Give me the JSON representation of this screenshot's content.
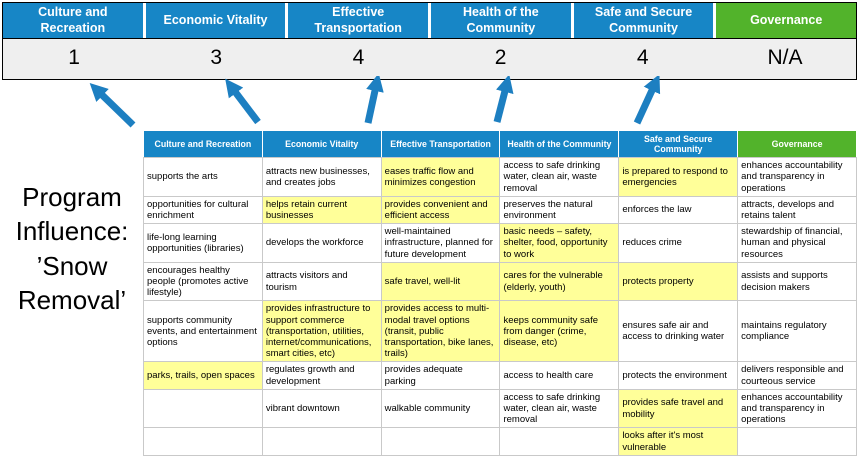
{
  "title": "Program Influence: ’Snow Removal’",
  "scoreboard": {
    "columns": [
      {
        "label": "Culture and Recreation",
        "score": "1",
        "color": "blue"
      },
      {
        "label": "Economic Vitality",
        "score": "3",
        "color": "blue"
      },
      {
        "label": "Effective Transportation",
        "score": "4",
        "color": "blue"
      },
      {
        "label": "Health of the Community",
        "score": "2",
        "color": "blue"
      },
      {
        "label": "Safe and Secure Community",
        "score": "4",
        "color": "blue"
      },
      {
        "label": "Governance",
        "score": "N/A",
        "color": "green"
      }
    ]
  },
  "table": {
    "headers": [
      {
        "label": "Culture and Recreation",
        "color": "blue"
      },
      {
        "label": "Economic Vitality",
        "color": "blue"
      },
      {
        "label": "Effective Transportation",
        "color": "blue"
      },
      {
        "label": "Health of the Community",
        "color": "blue"
      },
      {
        "label": "Safe and Secure Community",
        "color": "blue"
      },
      {
        "label": "Governance",
        "color": "green"
      }
    ],
    "rows": [
      [
        {
          "text": "supports the arts",
          "highlight": false
        },
        {
          "text": "attracts new businesses, and creates jobs",
          "highlight": false
        },
        {
          "text": "eases traffic flow and minimizes congestion",
          "highlight": true
        },
        {
          "text": "access to safe drinking water, clean air, waste removal",
          "highlight": false
        },
        {
          "text": "is prepared to respond to emergencies",
          "highlight": true
        },
        {
          "text": "enhances accountability and transparency in operations",
          "highlight": false
        }
      ],
      [
        {
          "text": "opportunities for cultural enrichment",
          "highlight": false
        },
        {
          "text": "helps retain current businesses",
          "highlight": true
        },
        {
          "text": "provides convenient and efficient access",
          "highlight": true
        },
        {
          "text": "preserves the natural environment",
          "highlight": false
        },
        {
          "text": "enforces the law",
          "highlight": false
        },
        {
          "text": "attracts, develops and retains talent",
          "highlight": false
        }
      ],
      [
        {
          "text": "life-long learning opportunities (libraries)",
          "highlight": false
        },
        {
          "text": "develops the workforce",
          "highlight": false
        },
        {
          "text": "well-maintained infrastructure, planned for future development",
          "highlight": false
        },
        {
          "text": "basic needs – safety, shelter, food, opportunity to work",
          "highlight": true
        },
        {
          "text": "reduces crime",
          "highlight": false
        },
        {
          "text": "stewardship of financial, human and physical resources",
          "highlight": false
        }
      ],
      [
        {
          "text": "encourages healthy people (promotes active lifestyle)",
          "highlight": false
        },
        {
          "text": "attracts visitors and tourism",
          "highlight": false
        },
        {
          "text": "safe travel, well-lit",
          "highlight": true
        },
        {
          "text": "cares for the vulnerable (elderly, youth)",
          "highlight": true
        },
        {
          "text": "protects property",
          "highlight": true
        },
        {
          "text": "assists and supports decision makers",
          "highlight": false
        }
      ],
      [
        {
          "text": "supports community events, and entertainment options",
          "highlight": false
        },
        {
          "text": "provides infrastructure to support commerce (transportation, utilities, internet/communications, smart cities, etc)",
          "highlight": true
        },
        {
          "text": "provides access to multi-modal travel options (transit, public transportation, bike lanes, trails)",
          "highlight": true
        },
        {
          "text": "keeps community safe from danger (crime, disease, etc)",
          "highlight": true
        },
        {
          "text": "ensures safe air and access to drinking water",
          "highlight": false
        },
        {
          "text": "maintains regulatory compliance",
          "highlight": false
        }
      ],
      [
        {
          "text": "parks, trails, open spaces",
          "highlight": true
        },
        {
          "text": "regulates growth and development",
          "highlight": false
        },
        {
          "text": "provides adequate parking",
          "highlight": false
        },
        {
          "text": "access to health care",
          "highlight": false
        },
        {
          "text": "protects the environment",
          "highlight": false
        },
        {
          "text": "delivers responsible and courteous service",
          "highlight": false
        }
      ],
      [
        {
          "text": "",
          "highlight": false
        },
        {
          "text": "vibrant downtown",
          "highlight": false
        },
        {
          "text": "walkable community",
          "highlight": false
        },
        {
          "text": "access to safe drinking water, clean air, waste removal",
          "highlight": false
        },
        {
          "text": "provides safe travel and mobility",
          "highlight": true
        },
        {
          "text": "enhances accountability and transparency in operations",
          "highlight": false
        }
      ],
      [
        {
          "text": "",
          "highlight": false
        },
        {
          "text": "",
          "highlight": false
        },
        {
          "text": "",
          "highlight": false
        },
        {
          "text": "",
          "highlight": false
        },
        {
          "text": "looks after it's most vulnerable",
          "highlight": true
        },
        {
          "text": "",
          "highlight": false
        }
      ]
    ]
  },
  "colors": {
    "blue": "#1786c6",
    "green": "#52b32b",
    "highlight": "#ffff99",
    "band": "#efefef",
    "arrow": "#1d7fc1"
  }
}
